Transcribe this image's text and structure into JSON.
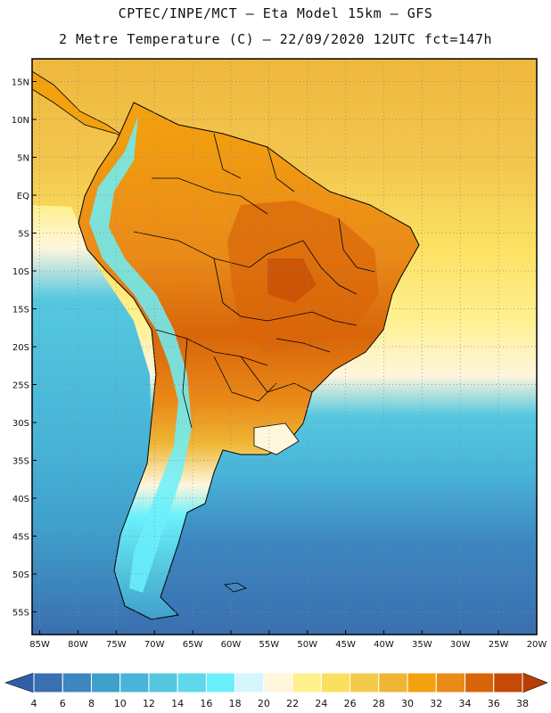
{
  "header": {
    "line1": "CPTEC/INPE/MCT –  Eta Model 15km – GFS",
    "line2": "2 Metre Temperature (C) – 22/09/2020 12UTC fct=147h"
  },
  "map": {
    "lat_range": [
      18,
      -58
    ],
    "lon_range": [
      -86,
      -20
    ],
    "lat_labels": [
      {
        "lat": 15,
        "label": "15N"
      },
      {
        "lat": 10,
        "label": "10N"
      },
      {
        "lat": 5,
        "label": "5N"
      },
      {
        "lat": 0,
        "label": "EQ"
      },
      {
        "lat": -5,
        "label": "5S"
      },
      {
        "lat": -10,
        "label": "10S"
      },
      {
        "lat": -15,
        "label": "15S"
      },
      {
        "lat": -20,
        "label": "20S"
      },
      {
        "lat": -25,
        "label": "25S"
      },
      {
        "lat": -30,
        "label": "30S"
      },
      {
        "lat": -35,
        "label": "35S"
      },
      {
        "lat": -40,
        "label": "40S"
      },
      {
        "lat": -45,
        "label": "45S"
      },
      {
        "lat": -50,
        "label": "50S"
      },
      {
        "lat": -55,
        "label": "55S"
      }
    ],
    "lon_labels": [
      {
        "lon": -85,
        "label": "85W"
      },
      {
        "lon": -80,
        "label": "80W"
      },
      {
        "lon": -75,
        "label": "75W"
      },
      {
        "lon": -70,
        "label": "70W"
      },
      {
        "lon": -65,
        "label": "65W"
      },
      {
        "lon": -60,
        "label": "60W"
      },
      {
        "lon": -55,
        "label": "55W"
      },
      {
        "lon": -50,
        "label": "50W"
      },
      {
        "lon": -45,
        "label": "45W"
      },
      {
        "lon": -40,
        "label": "40W"
      },
      {
        "lon": -35,
        "label": "35W"
      },
      {
        "lon": -30,
        "label": "30W"
      },
      {
        "lon": -25,
        "label": "25W"
      },
      {
        "lon": -20,
        "label": "20W"
      }
    ]
  },
  "colorbar": {
    "labels": [
      "4",
      "6",
      "8",
      "10",
      "12",
      "14",
      "16",
      "18",
      "20",
      "22",
      "24",
      "26",
      "28",
      "30",
      "32",
      "34",
      "36",
      "38"
    ],
    "colors": [
      "#3a6fb0",
      "#3d86c0",
      "#3fa0cc",
      "#48b4d8",
      "#55c8e0",
      "#5ed8ea",
      "#6bf0fc",
      "#d4f6fc",
      "#fff6dc",
      "#fff08e",
      "#fbe060",
      "#f3ca4c",
      "#eeb634",
      "#f3a20e",
      "#ea8a18",
      "#d96508",
      "#c44a06"
    ],
    "left_arrow_color": "#2f5fa6",
    "right_arrow_color": "#b83e06"
  },
  "palette": {
    "ocean_north": "#f3c64e",
    "ocean_mid": "#fbe060",
    "ocean_pale": "#fff6dc",
    "ocean_cold": "#48b4d8",
    "ocean_deep": "#3a6fb0",
    "land_hot": "#ea8a18",
    "land_hotter": "#d96508",
    "andes": "#6bf0fc",
    "border": "#000000",
    "grid": "#888888"
  }
}
